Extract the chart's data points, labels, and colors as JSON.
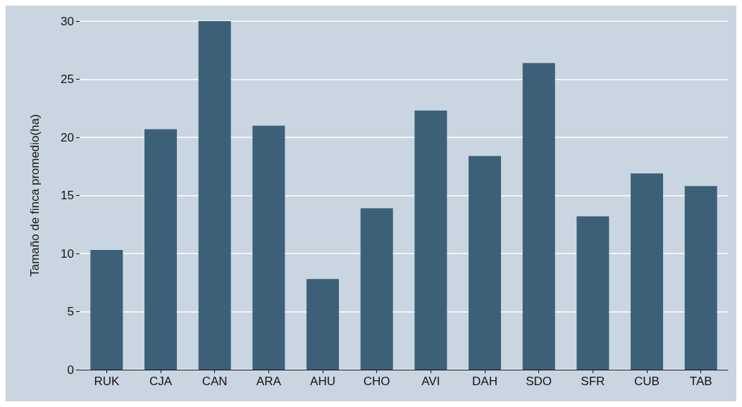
{
  "chart_data": {
    "type": "bar",
    "ylabel": "Tamaño de finca promedio(ha)",
    "categories": [
      "RUK",
      "CJA",
      "CAN",
      "ARA",
      "AHU",
      "CHO",
      "AVI",
      "DAH",
      "SDO",
      "SFR",
      "CUB",
      "TAB"
    ],
    "values": [
      10.3,
      20.7,
      30.0,
      21.0,
      7.8,
      13.9,
      22.3,
      18.4,
      26.4,
      13.2,
      16.9,
      15.8
    ],
    "color": "#3d6079",
    "ylim": [
      0,
      30
    ],
    "yticks": [
      0,
      5,
      10,
      15,
      20,
      25,
      30
    ],
    "grid": "y"
  }
}
